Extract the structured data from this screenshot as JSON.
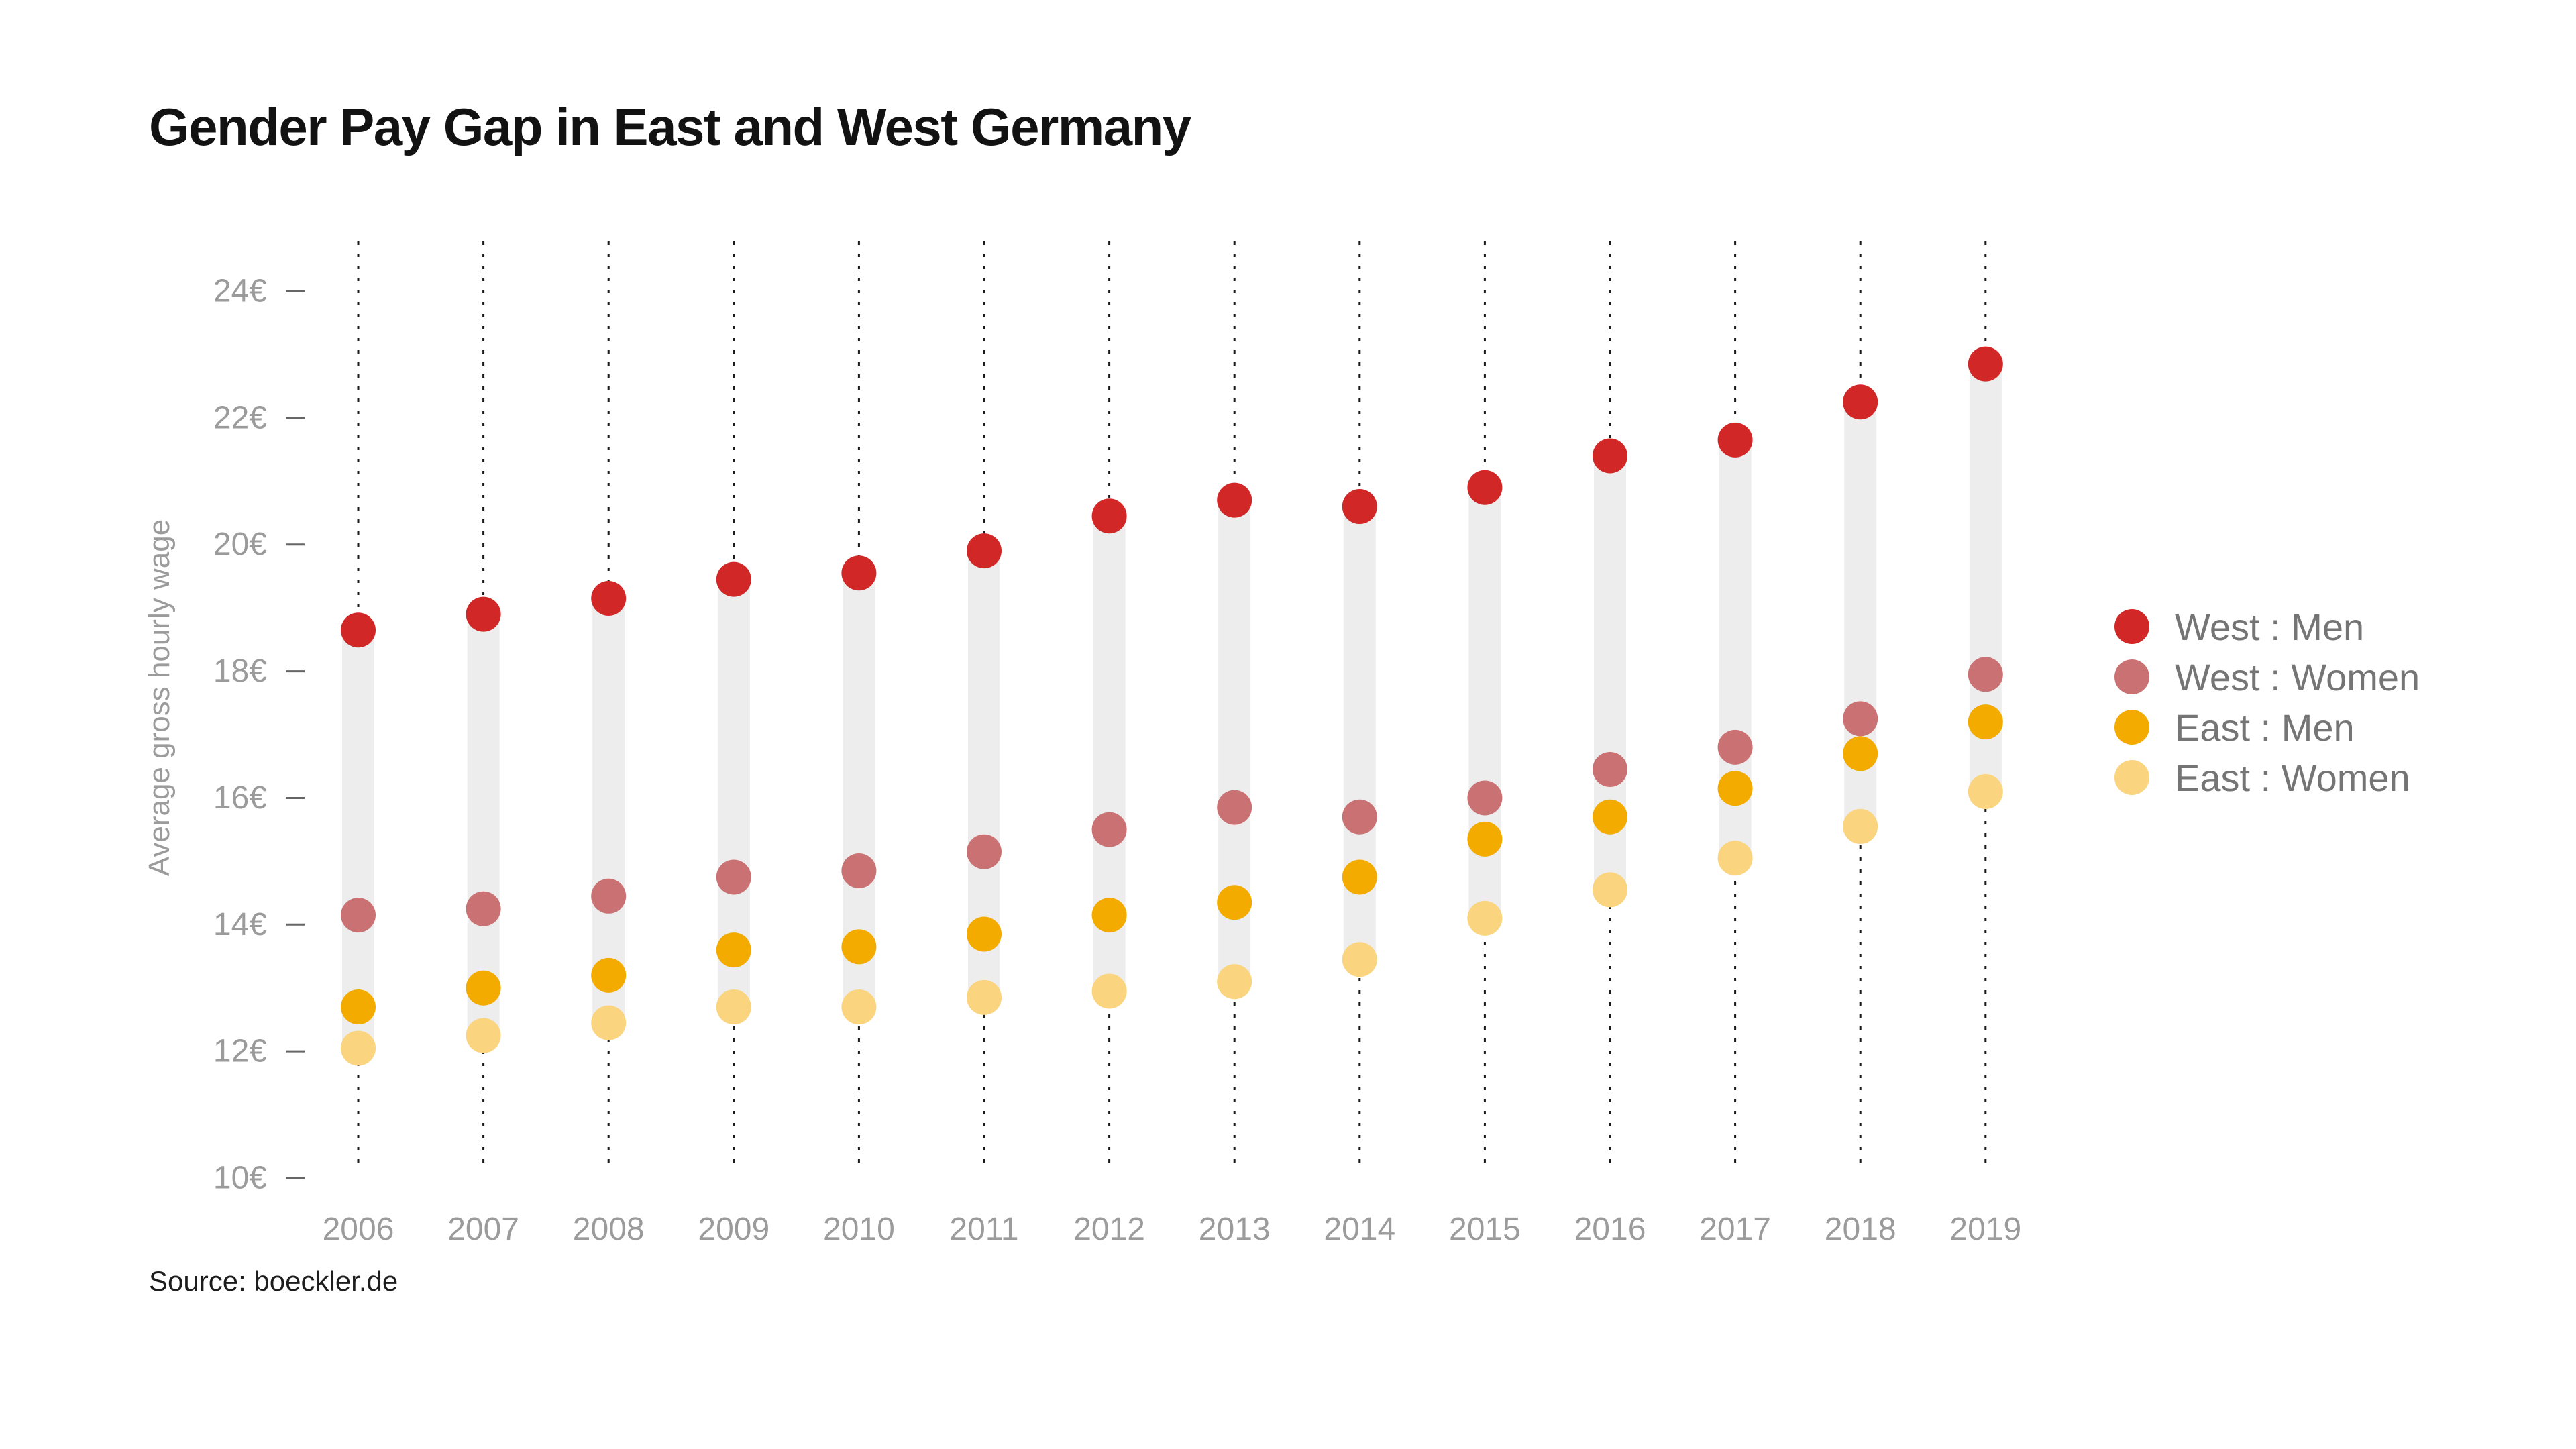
{
  "title": "Gender Pay Gap in East and West Germany",
  "source_note": "Source: boeckler.de",
  "colors": {
    "band": "#ededed",
    "dotted_line": "#1a1a1a",
    "tick_dash": "#666666",
    "axis_text": "#9b9b9b",
    "legend_text": "#757575",
    "title_text": "#121212",
    "source_text": "#1d1d1d"
  },
  "chart_data": {
    "type": "scatter",
    "subtype": "vertical-range-dot-plot",
    "title": "Gender Pay Gap in East and West Germany",
    "xlabel": "",
    "ylabel": "Average gross hourly wage",
    "x": [
      2006,
      2007,
      2008,
      2009,
      2010,
      2011,
      2012,
      2013,
      2014,
      2015,
      2016,
      2017,
      2018,
      2019
    ],
    "x_labels": [
      "2006",
      "2007",
      "2008",
      "2009",
      "2010",
      "2011",
      "2012",
      "2013",
      "2014",
      "2015",
      "2016",
      "2017",
      "2018",
      "2019"
    ],
    "y_unit": "€",
    "ylim": [
      10,
      24.7
    ],
    "grid": "vertical-dotted-guides-only",
    "legend_position": "right",
    "y_ticks": {
      "values": [
        24,
        22,
        20,
        18,
        16,
        14,
        12,
        10
      ],
      "labels": [
        "24€",
        "22€",
        "20€",
        "18€",
        "16€",
        "14€",
        "12€",
        "10€"
      ]
    },
    "series": [
      {
        "name": "West : Men",
        "color": "#d12727",
        "values": [
          18.65,
          18.9,
          19.15,
          19.45,
          19.55,
          19.9,
          20.45,
          20.7,
          20.6,
          20.9,
          21.4,
          21.65,
          22.25,
          22.85
        ]
      },
      {
        "name": "West : Women",
        "color": "#ca7273",
        "values": [
          14.15,
          14.25,
          14.45,
          14.75,
          14.85,
          15.15,
          15.5,
          15.85,
          15.7,
          16.0,
          16.45,
          16.8,
          17.25,
          17.95
        ]
      },
      {
        "name": "East : Men",
        "color": "#f3ab00",
        "values": [
          12.7,
          13.0,
          13.2,
          13.6,
          13.65,
          13.85,
          14.15,
          14.35,
          14.75,
          15.35,
          15.7,
          16.15,
          16.7,
          17.2
        ]
      },
      {
        "name": "East : Women",
        "color": "#fad47e",
        "values": [
          12.05,
          12.25,
          12.45,
          12.7,
          12.7,
          12.85,
          12.95,
          13.1,
          13.45,
          14.1,
          14.55,
          15.05,
          15.55,
          16.1
        ]
      }
    ]
  }
}
